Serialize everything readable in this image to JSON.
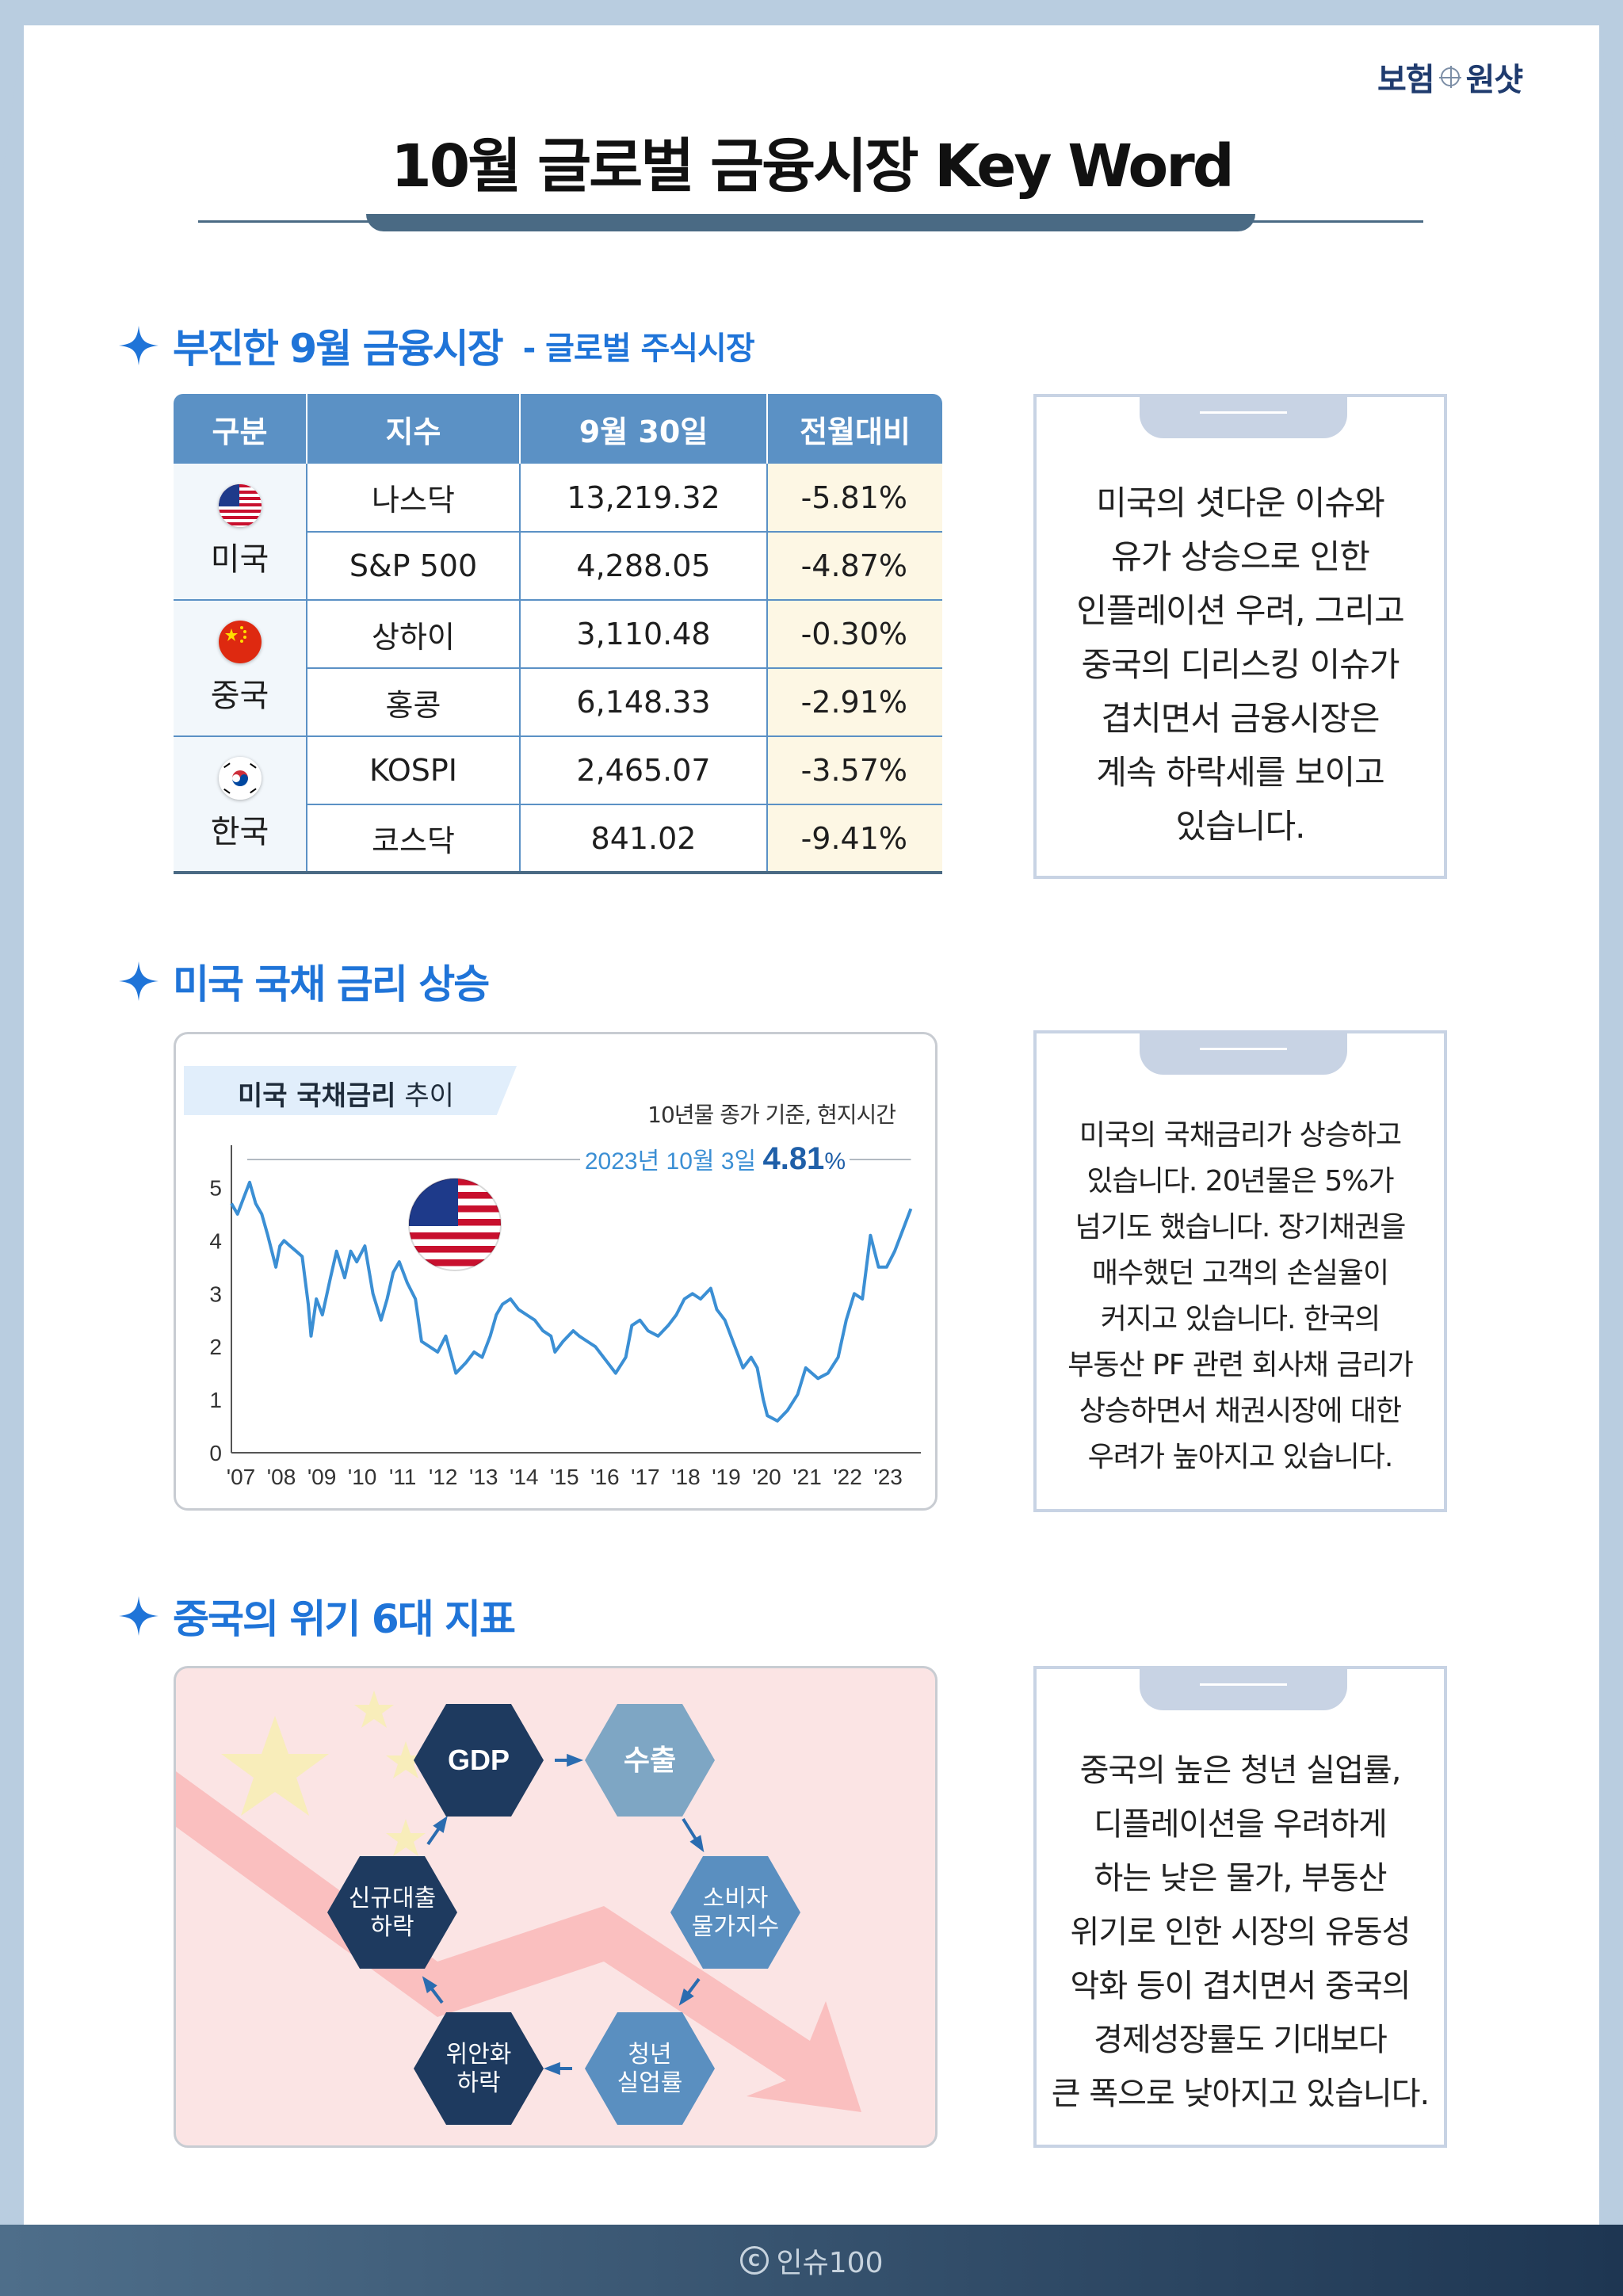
{
  "header": {
    "brand_left": "보험",
    "brand_right": "원샷",
    "title": "10월 글로벌 금융시장 Key Word"
  },
  "section1": {
    "heading": "부진한 9월 금융시장",
    "subheading": "- 글로벌 주식시장",
    "table": {
      "headers": [
        "구분",
        "지수",
        "9월 30일",
        "전월대비"
      ],
      "groups": [
        {
          "country": "미국",
          "flag": "us-flag-icon",
          "rows": [
            {
              "index": "나스닥",
              "value": "13,219.32",
              "change": "-5.81%"
            },
            {
              "index": "S&P 500",
              "value": "4,288.05",
              "change": "-4.87%"
            }
          ]
        },
        {
          "country": "중국",
          "flag": "china-flag-icon",
          "rows": [
            {
              "index": "상하이",
              "value": "3,110.48",
              "change": "-0.30%"
            },
            {
              "index": "홍콩",
              "value": "6,148.33",
              "change": "-2.91%"
            }
          ]
        },
        {
          "country": "한국",
          "flag": "korea-flag-icon",
          "rows": [
            {
              "index": "KOSPI",
              "value": "2,465.07",
              "change": "-3.57%"
            },
            {
              "index": "코스닥",
              "value": "841.02",
              "change": "-9.41%"
            }
          ]
        }
      ]
    },
    "card_lines": [
      "미국의 셧다운 이슈와",
      "유가 상승으로 인한",
      "인플레이션 우려, 그리고",
      "중국의 디리스킹 이슈가",
      "겹치면서 금융시장은",
      "계속 하락세를 보이고",
      "있습니다."
    ]
  },
  "section2": {
    "heading": "미국 국채 금리 상승",
    "chart_label_bold": "미국 국채금리",
    "chart_label_rest": " 추이",
    "chart_note": "10년물 종가 기준, 현지시간",
    "callout_date": "2023년 10월 3일",
    "callout_value": "4.81",
    "callout_unit": "%",
    "card_lines": [
      "미국의 국채금리가 상승하고",
      "있습니다. 20년물은 5%가",
      "넘기도 했습니다. 장기채권을",
      "매수했던 고객의 손실율이",
      "커지고 있습니다. 한국의",
      "부동산 PF 관련 회사채 금리가",
      "상승하면서 채권시장에 대한",
      "우려가 높아지고 있습니다."
    ]
  },
  "chart_data": {
    "type": "line",
    "title": "미국 국채금리 추이",
    "xlabel": "",
    "ylabel": "",
    "x_ticks": [
      "'07",
      "'08",
      "'09",
      "'10",
      "'11",
      "'12",
      "'13",
      "'14",
      "'15",
      "'16",
      "'17",
      "'18",
      "'19",
      "'20",
      "'21",
      "'22",
      "'23"
    ],
    "y_ticks": [
      0,
      1,
      2,
      3,
      4,
      5
    ],
    "ylim": [
      0,
      5.5
    ],
    "xlim": [
      2007.0,
      2023.85
    ],
    "grid": false,
    "x": [
      2007.0,
      2007.15,
      2007.3,
      2007.45,
      2007.6,
      2007.75,
      2007.9,
      2008.0,
      2008.1,
      2008.2,
      2008.3,
      2008.45,
      2008.6,
      2008.75,
      2008.9,
      2008.97,
      2009.1,
      2009.25,
      2009.45,
      2009.6,
      2009.8,
      2009.95,
      2010.1,
      2010.3,
      2010.5,
      2010.7,
      2010.85,
      2011.0,
      2011.15,
      2011.35,
      2011.55,
      2011.7,
      2011.9,
      2012.1,
      2012.3,
      2012.55,
      2012.8,
      2013.0,
      2013.2,
      2013.4,
      2013.55,
      2013.7,
      2013.9,
      2014.1,
      2014.3,
      2014.5,
      2014.7,
      2014.9,
      2015.0,
      2015.2,
      2015.45,
      2015.6,
      2015.8,
      2016.0,
      2016.2,
      2016.5,
      2016.75,
      2016.9,
      2017.1,
      2017.3,
      2017.55,
      2017.8,
      2018.0,
      2018.2,
      2018.4,
      2018.6,
      2018.85,
      2019.0,
      2019.2,
      2019.45,
      2019.65,
      2019.85,
      2020.0,
      2020.15,
      2020.25,
      2020.5,
      2020.75,
      2021.0,
      2021.2,
      2021.5,
      2021.75,
      2022.0,
      2022.2,
      2022.4,
      2022.6,
      2022.8,
      2023.0,
      2023.2,
      2023.4,
      2023.6,
      2023.8
    ],
    "y": [
      4.7,
      4.5,
      4.8,
      5.1,
      4.7,
      4.5,
      4.1,
      3.8,
      3.5,
      3.9,
      4.0,
      3.9,
      3.8,
      3.7,
      2.8,
      2.2,
      2.9,
      2.6,
      3.3,
      3.8,
      3.3,
      3.8,
      3.6,
      3.9,
      3.0,
      2.5,
      2.9,
      3.4,
      3.6,
      3.2,
      2.9,
      2.1,
      2.0,
      1.9,
      2.2,
      1.5,
      1.7,
      1.9,
      1.8,
      2.2,
      2.6,
      2.8,
      2.9,
      2.7,
      2.6,
      2.5,
      2.3,
      2.2,
      1.9,
      2.1,
      2.3,
      2.2,
      2.1,
      2.0,
      1.8,
      1.5,
      1.8,
      2.4,
      2.5,
      2.3,
      2.2,
      2.4,
      2.6,
      2.9,
      3.0,
      2.9,
      3.1,
      2.7,
      2.5,
      2.0,
      1.6,
      1.8,
      1.6,
      1.0,
      0.7,
      0.6,
      0.8,
      1.1,
      1.6,
      1.4,
      1.5,
      1.8,
      2.5,
      3.0,
      2.9,
      4.1,
      3.5,
      3.5,
      3.8,
      4.2,
      4.6
    ],
    "annotations": [
      {
        "text": "2023년 10월 3일 4.81%"
      }
    ]
  },
  "section3": {
    "heading": "중국의 위기 6대 지표",
    "nodes": [
      "GDP",
      "수출",
      "소비자\n물가지수",
      "청년\n실업률",
      "위안화\n하락",
      "신규대출\n하락"
    ],
    "card_lines": [
      "중국의 높은 청년 실업률,",
      "디플레이션을 우려하게",
      "하는 낮은 물가, 부동산",
      "위기로 인한 시장의 유동성",
      "악화 등이 겹치면서 중국의",
      "경제성장률도 기대보다",
      "큰 폭으로 낮아지고 있습니다."
    ]
  },
  "footer": {
    "copyright_mark": "C",
    "copyright": "인슈100"
  },
  "colors": {
    "accent_blue": "#1f74d8",
    "table_header": "#5b91c5",
    "navy_hex": "#1e3a5f",
    "light_hex": "#7ea6c4",
    "mid_hex": "#5a8fc0",
    "line": "#3b8fd4"
  }
}
